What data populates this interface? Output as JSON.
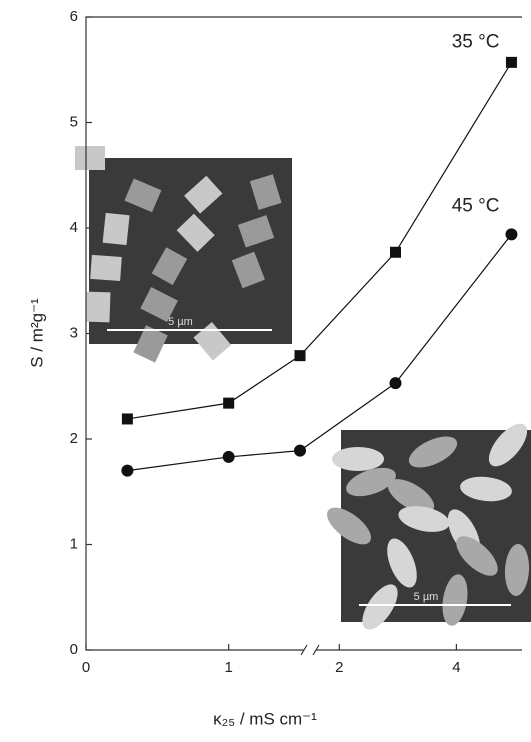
{
  "chart_data": {
    "type": "line",
    "x_label": "κ₂₅ / mS cm⁻¹",
    "y_label": "S / m²g⁻¹",
    "ylim": [
      0,
      6
    ],
    "yticks": [
      0,
      1,
      2,
      3,
      4,
      5,
      6
    ],
    "x_segments": [
      {
        "xlim": [
          0,
          1.57
        ],
        "xticks": [
          0,
          1
        ]
      },
      {
        "xlim": [
          1.5,
          5.12
        ],
        "xticks": [
          2,
          4
        ]
      }
    ],
    "x": [
      0.29,
      1.0,
      1.5,
      2.96,
      4.94
    ],
    "series": [
      {
        "name": "35 °C",
        "marker": "square",
        "color": "#111",
        "values": [
          2.19,
          2.34,
          2.79,
          3.77,
          5.57
        ]
      },
      {
        "name": "45 °C",
        "marker": "circle",
        "color": "#111",
        "values": [
          1.7,
          1.83,
          1.89,
          2.53,
          3.94
        ]
      }
    ],
    "insets": [
      {
        "scale_label": "5 µm"
      },
      {
        "scale_label": "5 µm"
      }
    ]
  }
}
